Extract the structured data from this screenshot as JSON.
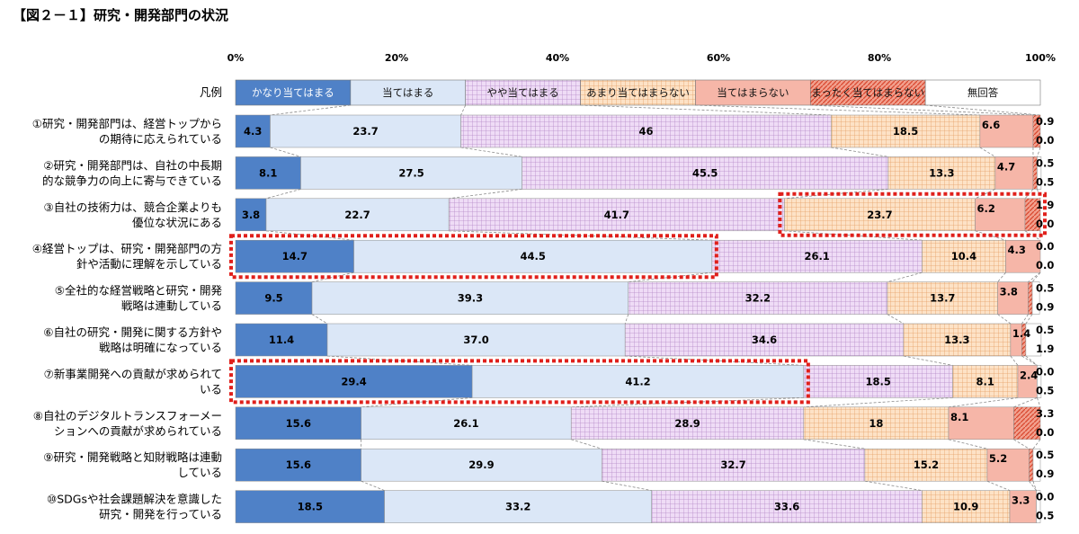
{
  "chart_data": {
    "type": "bar",
    "orientation": "horizontal",
    "stacked": "percent",
    "title": "【図２－１】研究・開発部門の状況",
    "legend_label": "凡例",
    "xlim": [
      0,
      100
    ],
    "xticks": [
      "0%",
      "20%",
      "40%",
      "60%",
      "80%",
      "100%"
    ],
    "legend_placement": "top",
    "grid": false,
    "categories": [
      [
        "①研究・開発部門は、経営トップから",
        "の期待に応えられている"
      ],
      [
        "②研究・開発部門は、自社の中長期",
        "的な競争力の向上に寄与できている"
      ],
      [
        "③自社の技術力は、競合企業よりも",
        "優位な状況にある"
      ],
      [
        "④経営トップは、研究・開発部門の方",
        "針や活動に理解を示している"
      ],
      [
        "⑤全社的な経営戦略と研究・開発",
        "戦略は連動している"
      ],
      [
        "⑥自社の研究・開発に関する方針や",
        "戦略は明確になっている"
      ],
      [
        "⑦新事業開発への貢献が求められて",
        "いる"
      ],
      [
        "⑧自社のデジタルトランスフォーメー",
        "ションへの貢献が求められている"
      ],
      [
        "⑨研究・開発戦略と知財戦略は連動",
        "している"
      ],
      [
        "⑩SDGsや社会課題解決を意識した",
        "研究・開発を行っている"
      ]
    ],
    "series": [
      {
        "name": "かなり当てはまる",
        "color": "#4f81c7",
        "values": [
          4.3,
          8.1,
          3.8,
          14.7,
          9.5,
          11.4,
          29.4,
          15.6,
          15.6,
          18.5
        ]
      },
      {
        "name": "当てはまる",
        "color": "#dbe7f7",
        "values": [
          23.7,
          27.5,
          22.7,
          44.5,
          39.3,
          37.0,
          41.2,
          26.1,
          29.9,
          33.2
        ]
      },
      {
        "name": "やや当てはまる",
        "color": "#e9d3f2",
        "pattern": "grid-purple",
        "values": [
          46,
          45.5,
          41.7,
          26.1,
          32.2,
          34.6,
          18.5,
          28.9,
          32.7,
          33.6
        ]
      },
      {
        "name": "あまり当てはまらない",
        "color": "#fbd9b8",
        "pattern": "grid-orange",
        "values": [
          18.5,
          13.3,
          23.7,
          10.4,
          13.7,
          13.3,
          8.1,
          18,
          15.2,
          10.9
        ]
      },
      {
        "name": "当てはまらない",
        "color": "#f6b6a8",
        "values": [
          6.6,
          4.7,
          6.2,
          4.3,
          3.8,
          1.4,
          2.4,
          8.1,
          5.2,
          3.3
        ]
      },
      {
        "name": "まったく当てはまらない",
        "color": "#ee8670",
        "pattern": "diag-red",
        "values": [
          0.9,
          0.5,
          1.9,
          0.0,
          0.5,
          0.5,
          0.0,
          3.3,
          0.5,
          0.0
        ]
      },
      {
        "name": "無回答",
        "color": "#ffffff",
        "values": [
          0.0,
          0.5,
          0.0,
          0.0,
          0.9,
          1.9,
          0.5,
          0.0,
          0.9,
          0.5
        ]
      }
    ],
    "value_labels": [
      [
        "4.3",
        "23.7",
        "46",
        "18.5",
        "6.6",
        "0.9",
        "0.0"
      ],
      [
        "8.1",
        "27.5",
        "45.5",
        "13.3",
        "4.7",
        "0.5",
        "0.5"
      ],
      [
        "3.8",
        "22.7",
        "41.7",
        "23.7",
        "6.2",
        "1.9",
        "0.0"
      ],
      [
        "14.7",
        "44.5",
        "26.1",
        "10.4",
        "4.3",
        "0.0",
        "0.0"
      ],
      [
        "9.5",
        "39.3",
        "32.2",
        "13.7",
        "3.8",
        "0.5",
        "0.9"
      ],
      [
        "11.4",
        "37.0",
        "34.6",
        "13.3",
        "1.4",
        "0.5",
        "1.9"
      ],
      [
        "29.4",
        "41.2",
        "18.5",
        "8.1",
        "2.4",
        "0.0",
        "0.5"
      ],
      [
        "15.6",
        "26.1",
        "28.9",
        "18",
        "8.1",
        "3.3",
        "0.0"
      ],
      [
        "15.6",
        "29.9",
        "32.7",
        "15.2",
        "5.2",
        "0.5",
        "0.9"
      ],
      [
        "18.5",
        "33.2",
        "33.6",
        "10.9",
        "3.3",
        "0.0",
        "0.5"
      ]
    ],
    "highlights": [
      {
        "category_index": 2,
        "from_series": 3,
        "to_series": 5
      },
      {
        "category_index": 3,
        "from_series": 0,
        "to_series": 1
      },
      {
        "category_index": 6,
        "from_series": 0,
        "to_series": 1
      }
    ]
  }
}
